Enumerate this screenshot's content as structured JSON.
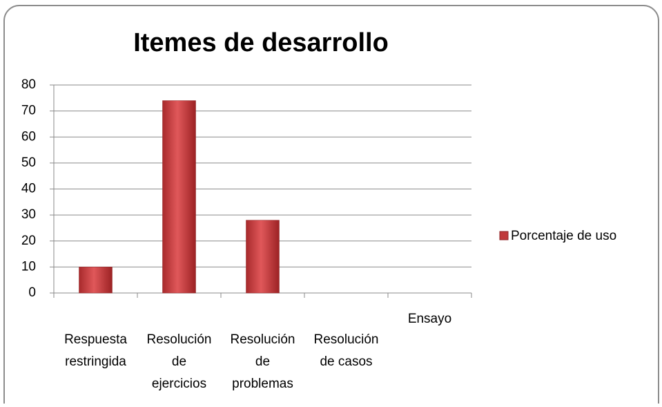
{
  "chart_data": {
    "type": "bar",
    "title": "Itemes de desarrollo",
    "categories": [
      "Respuesta restringida",
      "Resolución de ejercicios",
      "Resolución de problemas",
      "Resolución de casos",
      "Ensayo"
    ],
    "series": [
      {
        "name": "Porcentaje de uso",
        "color": "#c0393b",
        "values": [
          10,
          74,
          28,
          0,
          0
        ]
      }
    ],
    "ylim": [
      0,
      80
    ],
    "yticks": [
      0,
      10,
      20,
      30,
      40,
      50,
      60,
      70,
      80
    ],
    "grid": true,
    "legend": "right"
  }
}
